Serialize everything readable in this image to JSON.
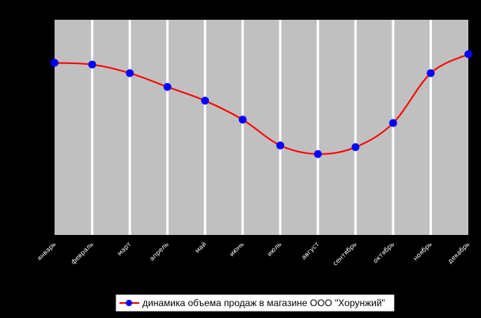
{
  "chart_data": {
    "type": "line",
    "title": "",
    "xlabel": "",
    "ylabel": "",
    "categories": [
      "январь",
      "февраль",
      "март",
      "апрель",
      "май",
      "июнь",
      "июль",
      "август",
      "сентябрь",
      "октябрь",
      "ноябрь",
      "декабрь"
    ],
    "series": [
      {
        "name": "динамика объема продаж в магазине ООО \"Хорунжий\"",
        "values": [
          100,
          99,
          94,
          86,
          78,
          67,
          52,
          47,
          51,
          65,
          94,
          105
        ]
      }
    ],
    "ylim": [
      0,
      125
    ],
    "grid": "vertical",
    "legend": "bottom-center",
    "colors": {
      "background": "#000000",
      "plot_area": "#c0c0c0",
      "gridline": "#ffffff",
      "series_line": "#ff0000",
      "series_marker": "#0000ff",
      "legend_box": "#ffffff",
      "tick_label": "#ffffff"
    },
    "smooth": true,
    "y_tick_labels_visible": false
  }
}
